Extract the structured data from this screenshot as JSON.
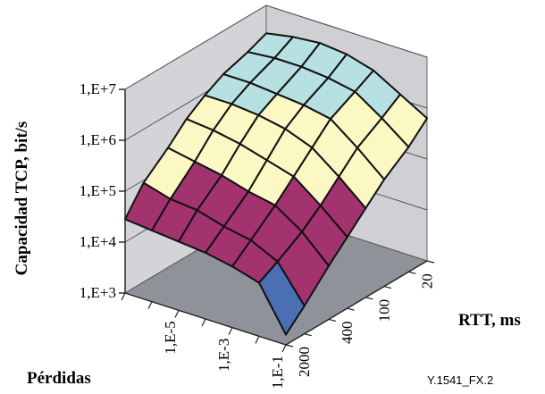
{
  "chart_data": {
    "type": "surface3d",
    "zlabel": "Capacidad TCP, bit/s",
    "xlabel": "Pérdidas",
    "ylabel": "RTT, ms",
    "figure_id": "Y.1541_FX.2",
    "z_scale": "log",
    "z_ticks": [
      "1,E+3",
      "1,E+4",
      "1,E+5",
      "1,E+6",
      "1,E+7"
    ],
    "z_range": [
      1000,
      10000000
    ],
    "loss_ticks": [
      "1,E-5",
      "1,E-3",
      "1,E-1"
    ],
    "rtt_ticks": [
      "20",
      "100",
      "400",
      "2000"
    ],
    "loss_values": [
      1e-07,
      1e-06,
      1e-05,
      0.0001,
      0.001,
      0.01,
      0.1
    ],
    "rtt_values": [
      10,
      20,
      50,
      100,
      200,
      400,
      1000,
      2000
    ],
    "band_colors": [
      {
        "from": 1000,
        "to": 10000,
        "color": "#4a6fb5"
      },
      {
        "from": 10000,
        "to": 100000,
        "color": "#a3336e"
      },
      {
        "from": 100000,
        "to": 1000000,
        "color": "#fbf8c4"
      },
      {
        "from": 1000000,
        "to": 10000000,
        "color": "#b7e0e2"
      }
    ],
    "grid": true,
    "legend": "none"
  }
}
